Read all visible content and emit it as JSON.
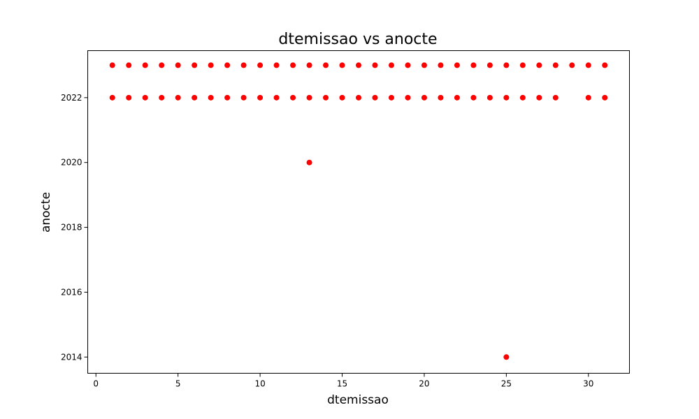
{
  "chart_data": {
    "type": "scatter",
    "title": "dtemissao vs anocte",
    "xlabel": "dtemissao",
    "ylabel": "anocte",
    "xlim": [
      -0.5,
      32.5
    ],
    "ylim": [
      2013.5,
      2023.45
    ],
    "xticks": [
      0,
      5,
      10,
      15,
      20,
      25,
      30
    ],
    "yticks": [
      2014,
      2016,
      2018,
      2020,
      2022
    ],
    "grid": false,
    "marker_color": "#ff0000",
    "series": [
      {
        "name": "anocte",
        "points": [
          [
            1,
            2023
          ],
          [
            2,
            2023
          ],
          [
            3,
            2023
          ],
          [
            4,
            2023
          ],
          [
            5,
            2023
          ],
          [
            6,
            2023
          ],
          [
            7,
            2023
          ],
          [
            8,
            2023
          ],
          [
            9,
            2023
          ],
          [
            10,
            2023
          ],
          [
            11,
            2023
          ],
          [
            12,
            2023
          ],
          [
            13,
            2023
          ],
          [
            14,
            2023
          ],
          [
            15,
            2023
          ],
          [
            16,
            2023
          ],
          [
            17,
            2023
          ],
          [
            18,
            2023
          ],
          [
            19,
            2023
          ],
          [
            20,
            2023
          ],
          [
            21,
            2023
          ],
          [
            22,
            2023
          ],
          [
            23,
            2023
          ],
          [
            24,
            2023
          ],
          [
            25,
            2023
          ],
          [
            26,
            2023
          ],
          [
            27,
            2023
          ],
          [
            28,
            2023
          ],
          [
            29,
            2023
          ],
          [
            30,
            2023
          ],
          [
            31,
            2023
          ],
          [
            1,
            2022
          ],
          [
            2,
            2022
          ],
          [
            3,
            2022
          ],
          [
            4,
            2022
          ],
          [
            5,
            2022
          ],
          [
            6,
            2022
          ],
          [
            7,
            2022
          ],
          [
            8,
            2022
          ],
          [
            9,
            2022
          ],
          [
            10,
            2022
          ],
          [
            11,
            2022
          ],
          [
            12,
            2022
          ],
          [
            13,
            2022
          ],
          [
            14,
            2022
          ],
          [
            15,
            2022
          ],
          [
            16,
            2022
          ],
          [
            17,
            2022
          ],
          [
            18,
            2022
          ],
          [
            19,
            2022
          ],
          [
            20,
            2022
          ],
          [
            21,
            2022
          ],
          [
            22,
            2022
          ],
          [
            23,
            2022
          ],
          [
            24,
            2022
          ],
          [
            25,
            2022
          ],
          [
            26,
            2022
          ],
          [
            27,
            2022
          ],
          [
            28,
            2022
          ],
          [
            30,
            2022
          ],
          [
            31,
            2022
          ],
          [
            13,
            2020
          ],
          [
            25,
            2014
          ]
        ]
      }
    ]
  }
}
